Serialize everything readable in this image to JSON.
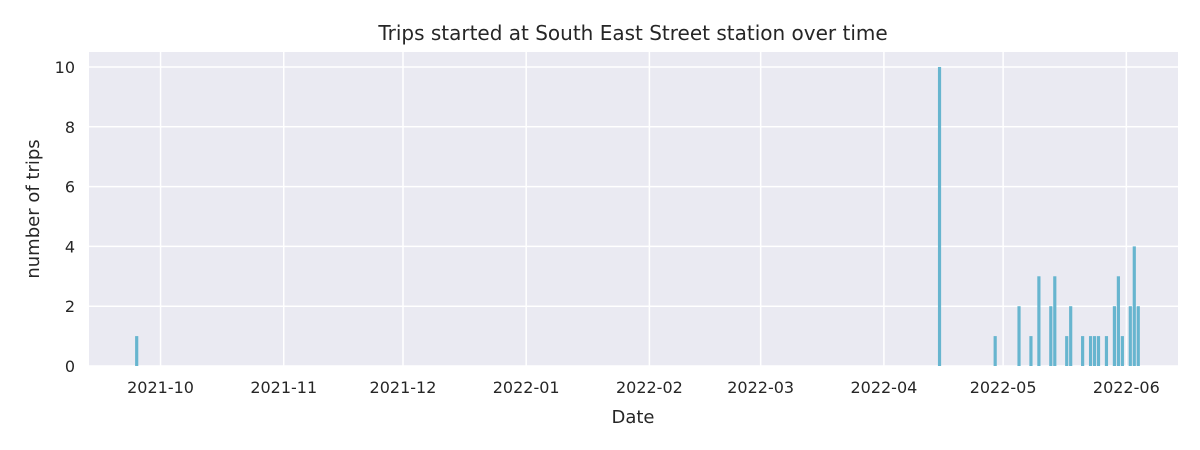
{
  "chart_data": {
    "type": "bar",
    "title": "Trips started at South East Street station over time",
    "xlabel": "Date",
    "ylabel": "number of trips",
    "ylim": [
      0,
      10.5
    ],
    "xlim": [
      "2021-09-13",
      "2022-06-14"
    ],
    "y_ticks": [
      0,
      2,
      4,
      6,
      8,
      10
    ],
    "x_ticks": [
      {
        "date": "2021-10-01",
        "label": "2021-10"
      },
      {
        "date": "2021-11-01",
        "label": "2021-11"
      },
      {
        "date": "2021-12-01",
        "label": "2021-12"
      },
      {
        "date": "2022-01-01",
        "label": "2022-01"
      },
      {
        "date": "2022-02-01",
        "label": "2022-02"
      },
      {
        "date": "2022-03-01",
        "label": "2022-03"
      },
      {
        "date": "2022-04-01",
        "label": "2022-04"
      },
      {
        "date": "2022-05-01",
        "label": "2022-05"
      },
      {
        "date": "2022-06-01",
        "label": "2022-06"
      }
    ],
    "bar_color": "#67b5cf",
    "background": "#eaeaf2",
    "grid": true,
    "x": [
      "2021-09-25",
      "2022-04-15",
      "2022-04-29",
      "2022-05-05",
      "2022-05-08",
      "2022-05-10",
      "2022-05-13",
      "2022-05-14",
      "2022-05-17",
      "2022-05-18",
      "2022-05-21",
      "2022-05-23",
      "2022-05-24",
      "2022-05-25",
      "2022-05-27",
      "2022-05-29",
      "2022-05-30",
      "2022-05-31",
      "2022-06-02",
      "2022-06-03",
      "2022-06-04"
    ],
    "values": [
      1,
      10,
      1,
      2,
      1,
      3,
      2,
      3,
      1,
      2,
      1,
      1,
      1,
      1,
      1,
      2,
      3,
      1,
      2,
      4,
      2
    ]
  }
}
